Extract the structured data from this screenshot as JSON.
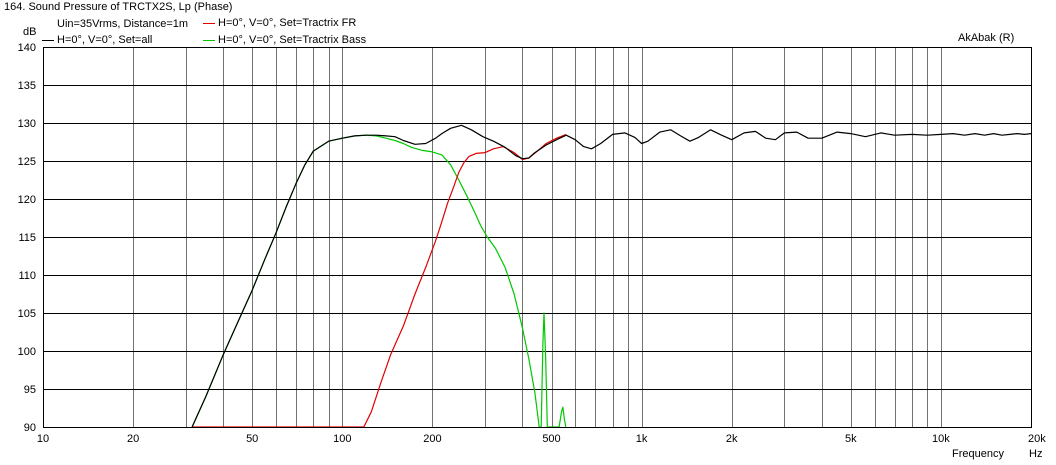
{
  "chart_data": {
    "type": "line",
    "title": "164. Sound Pressure of TRCTX2S, Lp (Phase)",
    "subtitle": "Uin=35Vrms, Distance=1m",
    "watermark": "AkAbak (R)",
    "ylabel": "dB",
    "xlabel": "Frequency",
    "x_unit": "Hz",
    "x_scale": "log",
    "xlim": [
      10,
      20000
    ],
    "ylim": [
      90,
      140
    ],
    "grid": true,
    "y_ticks": [
      "140",
      "135",
      "130",
      "125",
      "120",
      "115",
      "110",
      "105",
      "100",
      "95",
      "90"
    ],
    "x_ticks": [
      {
        "value": 10,
        "label": "10"
      },
      {
        "value": 20,
        "label": "20"
      },
      {
        "value": 50,
        "label": "50"
      },
      {
        "value": 100,
        "label": "100"
      },
      {
        "value": 200,
        "label": "200"
      },
      {
        "value": 500,
        "label": "500"
      },
      {
        "value": 1000,
        "label": "1k"
      },
      {
        "value": 2000,
        "label": "2k"
      },
      {
        "value": 5000,
        "label": "5k"
      },
      {
        "value": 10000,
        "label": "10k"
      },
      {
        "value": 20000,
        "label": "20k"
      }
    ],
    "series": [
      {
        "name": "H=0°, V=0°, Set=all",
        "color": "#000000",
        "points": [
          [
            31.5,
            90
          ],
          [
            35,
            94
          ],
          [
            40,
            99.5
          ],
          [
            45,
            104
          ],
          [
            50,
            108
          ],
          [
            55,
            112
          ],
          [
            60,
            115.5
          ],
          [
            65,
            119
          ],
          [
            70,
            122
          ],
          [
            75,
            124.5
          ],
          [
            80,
            126.3
          ],
          [
            90,
            127.6
          ],
          [
            100,
            128
          ],
          [
            110,
            128.3
          ],
          [
            120,
            128.4
          ],
          [
            130,
            128.4
          ],
          [
            140,
            128.3
          ],
          [
            150,
            128.2
          ],
          [
            160,
            127.7
          ],
          [
            175,
            127.2
          ],
          [
            190,
            127.3
          ],
          [
            205,
            128
          ],
          [
            215,
            128.6
          ],
          [
            230,
            129.3
          ],
          [
            250,
            129.7
          ],
          [
            270,
            129.1
          ],
          [
            295,
            128.2
          ],
          [
            320,
            127.6
          ],
          [
            350,
            126.8
          ],
          [
            380,
            125.7
          ],
          [
            400,
            125.3
          ],
          [
            420,
            125.4
          ],
          [
            440,
            126.1
          ],
          [
            480,
            127.1
          ],
          [
            520,
            127.8
          ],
          [
            560,
            128.4
          ],
          [
            600,
            127.8
          ],
          [
            640,
            126.9
          ],
          [
            680,
            126.6
          ],
          [
            730,
            127.3
          ],
          [
            800,
            128.5
          ],
          [
            880,
            128.7
          ],
          [
            950,
            128.1
          ],
          [
            1000,
            127.3
          ],
          [
            1050,
            127.6
          ],
          [
            1150,
            128.8
          ],
          [
            1250,
            129.1
          ],
          [
            1350,
            128.3
          ],
          [
            1450,
            127.6
          ],
          [
            1550,
            128.1
          ],
          [
            1700,
            129.1
          ],
          [
            1850,
            128.4
          ],
          [
            2000,
            127.8
          ],
          [
            2200,
            128.7
          ],
          [
            2400,
            128.9
          ],
          [
            2600,
            128
          ],
          [
            2800,
            127.8
          ],
          [
            3000,
            128.7
          ],
          [
            3300,
            128.8
          ],
          [
            3600,
            128
          ],
          [
            4000,
            128
          ],
          [
            4500,
            128.8
          ],
          [
            5000,
            128.6
          ],
          [
            5600,
            128.2
          ],
          [
            6300,
            128.7
          ],
          [
            7000,
            128.4
          ],
          [
            8000,
            128.5
          ],
          [
            9000,
            128.4
          ],
          [
            10000,
            128.5
          ],
          [
            11000,
            128.6
          ],
          [
            12000,
            128.4
          ],
          [
            13000,
            128.6
          ],
          [
            14000,
            128.4
          ],
          [
            15000,
            128.6
          ],
          [
            16000,
            128.4
          ],
          [
            17000,
            128.5
          ],
          [
            18000,
            128.6
          ],
          [
            19000,
            128.5
          ],
          [
            20000,
            128.6
          ]
        ]
      },
      {
        "name": "H=0°, V=0°, Set=Tractrix FR",
        "color": "#e00000",
        "points": [
          [
            31.5,
            90
          ],
          [
            118,
            90
          ],
          [
            125,
            92
          ],
          [
            135,
            96
          ],
          [
            145,
            99.5
          ],
          [
            160,
            103.3
          ],
          [
            175,
            107.5
          ],
          [
            190,
            111
          ],
          [
            205,
            114.5
          ],
          [
            215,
            117
          ],
          [
            225,
            119.5
          ],
          [
            235,
            121.5
          ],
          [
            245,
            123.5
          ],
          [
            255,
            124.8
          ],
          [
            265,
            125.6
          ],
          [
            280,
            126
          ],
          [
            300,
            126.1
          ],
          [
            320,
            126.6
          ],
          [
            345,
            126.9
          ],
          [
            375,
            126.1
          ],
          [
            400,
            125.2
          ],
          [
            420,
            125.4
          ],
          [
            445,
            126.2
          ],
          [
            480,
            127.3
          ],
          [
            520,
            128
          ],
          [
            560,
            128.5
          ]
        ]
      },
      {
        "name": "H=0°, V=0°, Set=Tractrix Bass",
        "color": "#00c800",
        "points": [
          [
            31.5,
            90
          ],
          [
            35,
            94
          ],
          [
            40,
            99.5
          ],
          [
            45,
            104
          ],
          [
            50,
            108
          ],
          [
            55,
            112
          ],
          [
            60,
            115.5
          ],
          [
            65,
            119
          ],
          [
            70,
            122
          ],
          [
            75,
            124.5
          ],
          [
            80,
            126.3
          ],
          [
            90,
            127.6
          ],
          [
            100,
            128
          ],
          [
            110,
            128.3
          ],
          [
            120,
            128.4
          ],
          [
            130,
            128.3
          ],
          [
            140,
            128
          ],
          [
            150,
            127.7
          ],
          [
            160,
            127.3
          ],
          [
            170,
            126.8
          ],
          [
            185,
            126.4
          ],
          [
            200,
            126.2
          ],
          [
            215,
            125.8
          ],
          [
            230,
            124.5
          ],
          [
            245,
            122.5
          ],
          [
            260,
            120.5
          ],
          [
            275,
            118.5
          ],
          [
            290,
            116.5
          ],
          [
            305,
            115
          ],
          [
            325,
            113.5
          ],
          [
            350,
            111
          ],
          [
            375,
            107.5
          ],
          [
            400,
            103
          ],
          [
            420,
            99
          ],
          [
            440,
            94.5
          ],
          [
            455,
            90
          ],
          [
            462,
            90
          ],
          [
            468,
            101
          ],
          [
            472,
            105
          ],
          [
            478,
            99
          ],
          [
            484,
            90
          ],
          [
            530,
            90
          ],
          [
            540,
            92
          ],
          [
            546,
            92.6
          ],
          [
            552,
            91
          ],
          [
            558,
            90
          ]
        ]
      }
    ]
  }
}
